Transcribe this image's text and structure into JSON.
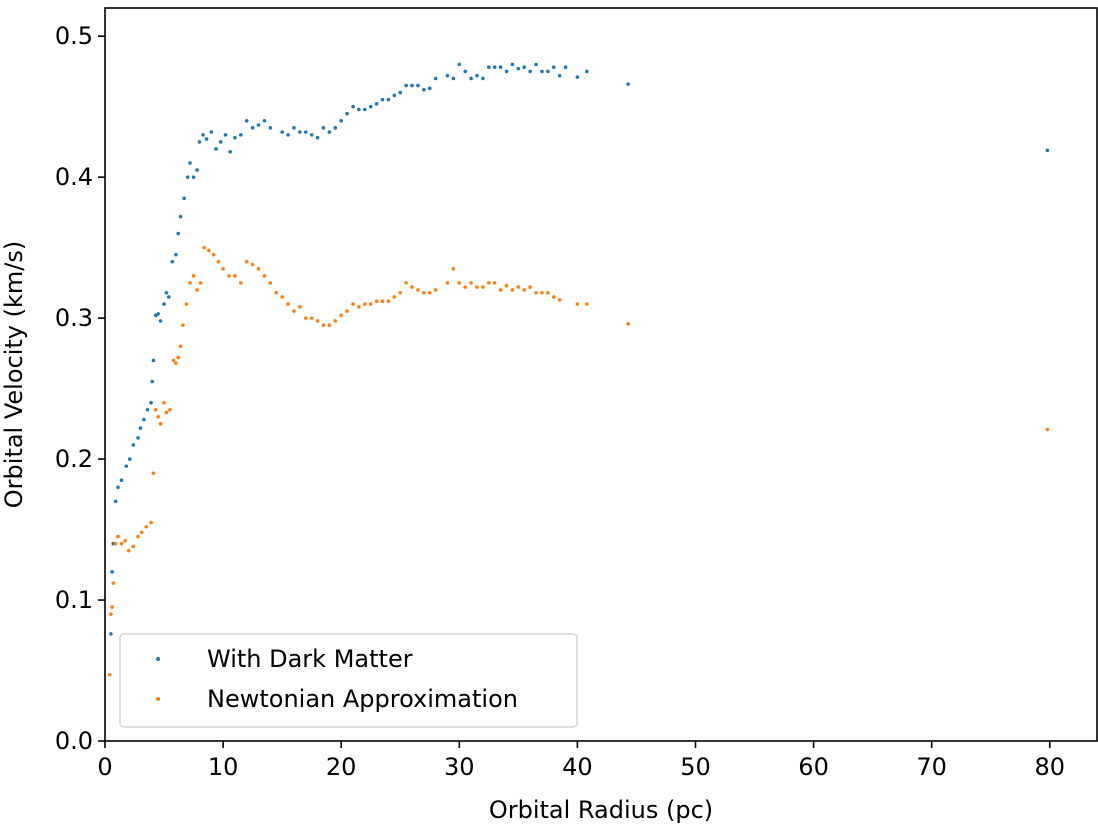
{
  "chart_data": {
    "type": "scatter",
    "title": "",
    "xlabel": "Orbital Radius (pc)",
    "ylabel": "Orbital Velocity (km/s)",
    "xlim": [
      0,
      84
    ],
    "ylim": [
      0,
      0.52
    ],
    "xticks": [
      0,
      10,
      20,
      30,
      40,
      50,
      60,
      70,
      80
    ],
    "xtick_labels": [
      "0",
      "10",
      "20",
      "30",
      "40",
      "50",
      "60",
      "70",
      "80"
    ],
    "yticks": [
      0.0,
      0.1,
      0.2,
      0.3,
      0.4,
      0.5
    ],
    "ytick_labels": [
      "0.0",
      "0.1",
      "0.2",
      "0.3",
      "0.4",
      "0.5"
    ],
    "grid": false,
    "legend_position": "bottom-left",
    "series": [
      {
        "name": "With Dark Matter",
        "color": "#1f77b4",
        "x": [
          0.5,
          0.6,
          0.7,
          0.9,
          1.1,
          1.4,
          1.8,
          2.1,
          2.4,
          2.8,
          3.0,
          3.3,
          3.6,
          3.9,
          4.0,
          4.1,
          4.3,
          4.5,
          4.7,
          5.0,
          5.2,
          5.4,
          5.7,
          6.0,
          6.2,
          6.4,
          6.7,
          7.0,
          7.2,
          7.5,
          7.8,
          8.0,
          8.3,
          8.6,
          9.0,
          9.4,
          9.8,
          10.2,
          10.6,
          11.0,
          11.5,
          12.0,
          12.5,
          13.0,
          13.5,
          14.0,
          15.0,
          15.5,
          16.0,
          16.5,
          17.0,
          17.5,
          18.0,
          18.5,
          19.0,
          19.5,
          20.0,
          20.5,
          21.0,
          21.5,
          22.0,
          22.5,
          23.0,
          23.5,
          24.0,
          24.5,
          25.0,
          25.5,
          26.0,
          26.5,
          27.0,
          27.5,
          28.0,
          29.0,
          29.5,
          30.0,
          30.5,
          31.0,
          31.5,
          32.0,
          32.5,
          33.0,
          33.5,
          34.0,
          34.5,
          35.0,
          35.5,
          36.0,
          36.5,
          37.0,
          37.5,
          38.0,
          38.5,
          39.0,
          40.0,
          40.8,
          44.3,
          79.8
        ],
        "values": [
          0.076,
          0.12,
          0.14,
          0.17,
          0.18,
          0.185,
          0.195,
          0.2,
          0.21,
          0.215,
          0.222,
          0.228,
          0.235,
          0.24,
          0.255,
          0.27,
          0.302,
          0.303,
          0.298,
          0.31,
          0.318,
          0.315,
          0.34,
          0.345,
          0.36,
          0.372,
          0.385,
          0.4,
          0.41,
          0.4,
          0.405,
          0.425,
          0.43,
          0.427,
          0.432,
          0.42,
          0.425,
          0.43,
          0.418,
          0.428,
          0.43,
          0.44,
          0.435,
          0.437,
          0.44,
          0.435,
          0.432,
          0.43,
          0.435,
          0.432,
          0.432,
          0.43,
          0.428,
          0.435,
          0.432,
          0.435,
          0.44,
          0.445,
          0.45,
          0.448,
          0.448,
          0.45,
          0.452,
          0.455,
          0.455,
          0.458,
          0.46,
          0.465,
          0.465,
          0.465,
          0.462,
          0.463,
          0.47,
          0.472,
          0.47,
          0.48,
          0.475,
          0.47,
          0.472,
          0.47,
          0.478,
          0.478,
          0.478,
          0.475,
          0.48,
          0.477,
          0.478,
          0.475,
          0.48,
          0.475,
          0.475,
          0.478,
          0.472,
          0.478,
          0.471,
          0.475,
          0.466,
          0.419
        ]
      },
      {
        "name": "Newtonian Approximation",
        "color": "#ff7f0e",
        "x": [
          0.4,
          0.5,
          0.6,
          0.7,
          0.9,
          1.1,
          1.4,
          1.7,
          2.0,
          2.4,
          2.8,
          3.1,
          3.5,
          3.9,
          4.1,
          4.3,
          4.5,
          4.7,
          5.0,
          5.2,
          5.5,
          5.8,
          6.0,
          6.2,
          6.4,
          6.6,
          6.9,
          7.2,
          7.5,
          7.8,
          8.1,
          8.4,
          8.8,
          9.2,
          9.6,
          10.0,
          10.5,
          11.0,
          11.5,
          12.0,
          12.5,
          13.0,
          13.5,
          14.0,
          14.5,
          15.0,
          15.5,
          16.0,
          16.5,
          17.0,
          17.5,
          18.0,
          18.5,
          19.0,
          19.5,
          20.0,
          20.5,
          21.0,
          21.5,
          22.0,
          22.5,
          23.0,
          23.5,
          24.0,
          24.5,
          25.0,
          25.5,
          26.0,
          26.5,
          27.0,
          27.5,
          28.0,
          29.0,
          29.5,
          30.0,
          30.5,
          31.0,
          31.5,
          32.0,
          32.5,
          33.0,
          33.5,
          34.0,
          34.5,
          35.0,
          35.5,
          36.0,
          36.5,
          37.0,
          37.5,
          38.0,
          38.5,
          40.0,
          40.8,
          44.3,
          79.8
        ],
        "values": [
          0.047,
          0.09,
          0.095,
          0.112,
          0.14,
          0.145,
          0.14,
          0.142,
          0.135,
          0.138,
          0.145,
          0.148,
          0.152,
          0.155,
          0.19,
          0.235,
          0.23,
          0.225,
          0.24,
          0.233,
          0.235,
          0.27,
          0.268,
          0.272,
          0.28,
          0.295,
          0.31,
          0.325,
          0.33,
          0.32,
          0.325,
          0.35,
          0.348,
          0.345,
          0.34,
          0.335,
          0.33,
          0.33,
          0.325,
          0.34,
          0.338,
          0.335,
          0.33,
          0.325,
          0.318,
          0.315,
          0.31,
          0.305,
          0.308,
          0.3,
          0.3,
          0.298,
          0.295,
          0.295,
          0.298,
          0.302,
          0.305,
          0.31,
          0.308,
          0.31,
          0.31,
          0.312,
          0.312,
          0.312,
          0.315,
          0.318,
          0.325,
          0.322,
          0.32,
          0.318,
          0.318,
          0.32,
          0.325,
          0.335,
          0.325,
          0.322,
          0.325,
          0.322,
          0.322,
          0.325,
          0.325,
          0.32,
          0.323,
          0.32,
          0.322,
          0.32,
          0.322,
          0.318,
          0.318,
          0.318,
          0.315,
          0.313,
          0.31,
          0.31,
          0.296,
          0.221
        ]
      }
    ]
  }
}
